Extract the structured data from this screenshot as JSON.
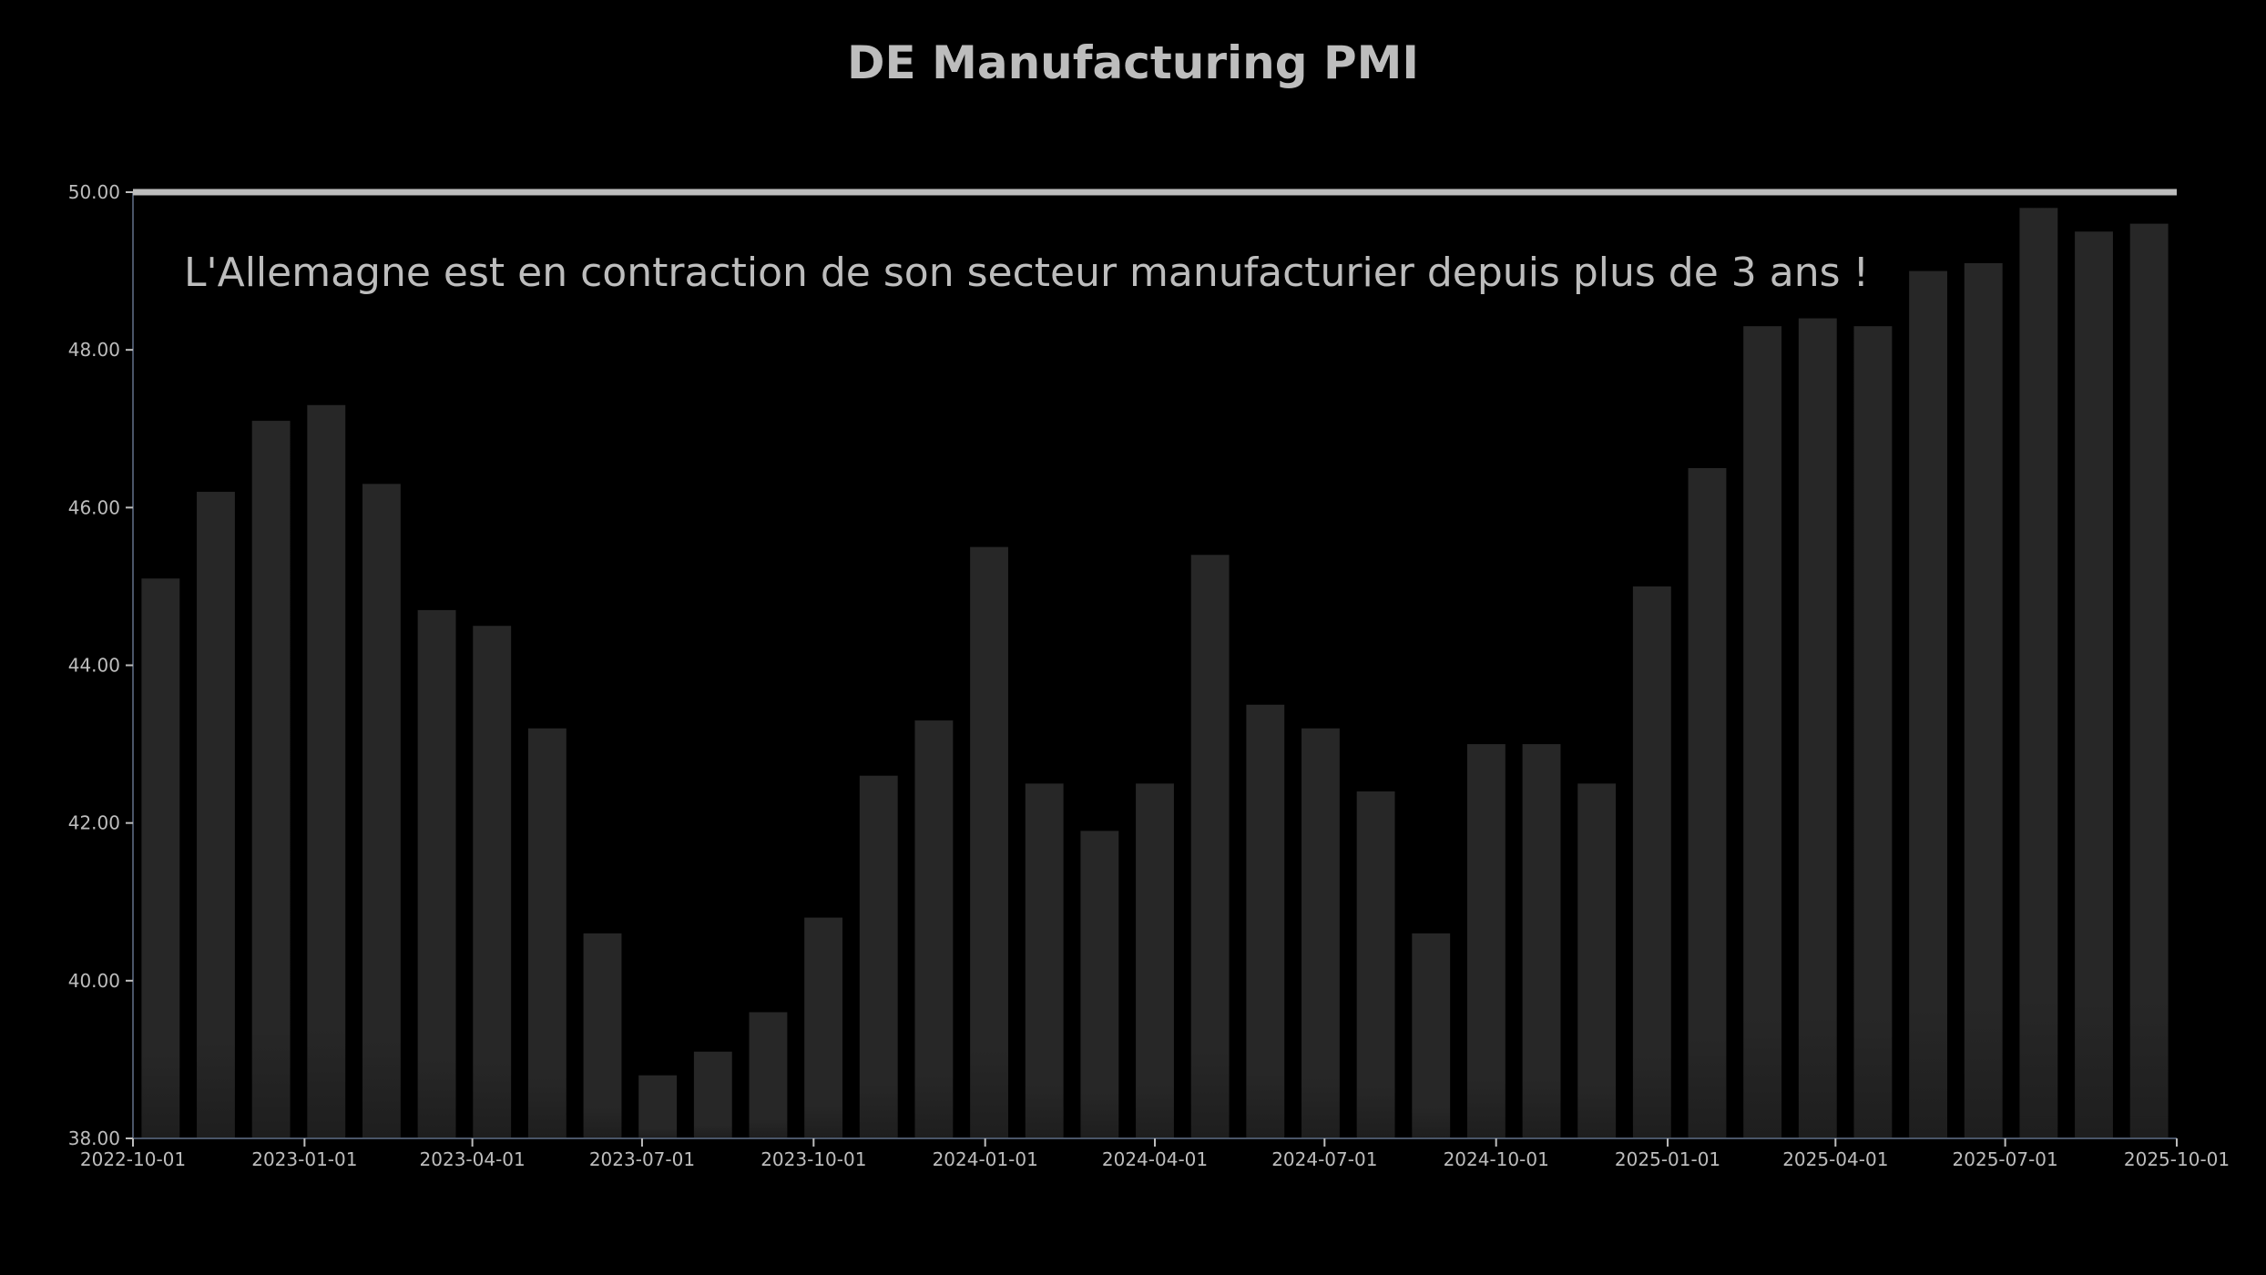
{
  "chart_data": {
    "type": "bar",
    "title": "DE Manufacturing PMI",
    "annotation": "L'Allemagne est en contraction de son secteur manufacturier depuis plus de 3 ans !",
    "xlabel": "",
    "ylabel": "",
    "ylim": [
      38,
      50
    ],
    "yticks": [
      "38.00",
      "40.00",
      "42.00",
      "44.00",
      "46.00",
      "48.00",
      "50.00"
    ],
    "xticks": [
      "2022-10-01",
      "2023-01-01",
      "2023-04-01",
      "2023-07-01",
      "2023-10-01",
      "2024-01-01",
      "2024-04-01",
      "2024-07-01",
      "2024-10-01",
      "2025-01-01",
      "2025-04-01",
      "2025-07-01",
      "2025-10-01"
    ],
    "reference_line": 50,
    "grid": false,
    "categories": [
      "2022-10",
      "2022-11",
      "2022-12",
      "2023-01",
      "2023-02",
      "2023-03",
      "2023-04",
      "2023-05",
      "2023-06",
      "2023-07",
      "2023-08",
      "2023-09",
      "2023-10",
      "2023-11",
      "2023-12",
      "2024-01",
      "2024-02",
      "2024-03",
      "2024-04",
      "2024-05",
      "2024-06",
      "2024-07",
      "2024-08",
      "2024-09",
      "2024-10",
      "2024-11",
      "2024-12",
      "2025-01",
      "2025-02",
      "2025-03",
      "2025-04",
      "2025-05",
      "2025-06",
      "2025-07",
      "2025-08",
      "2025-09",
      "2025-10"
    ],
    "values": [
      45.1,
      46.2,
      47.1,
      47.3,
      46.3,
      44.7,
      44.5,
      43.2,
      40.6,
      38.8,
      39.1,
      39.6,
      40.8,
      42.6,
      43.3,
      45.5,
      42.5,
      41.9,
      42.5,
      45.4,
      43.5,
      43.2,
      42.4,
      40.6,
      43.0,
      43.0,
      42.5,
      45.0,
      46.5,
      48.3,
      48.4,
      48.3,
      49.0,
      49.1,
      49.8,
      49.5,
      49.6
    ],
    "colors": {
      "background": "#000000",
      "bar": "#262626",
      "text": "#bdbdbd",
      "axis": "#4a5568",
      "reference_line": "#bdbdbd"
    }
  }
}
